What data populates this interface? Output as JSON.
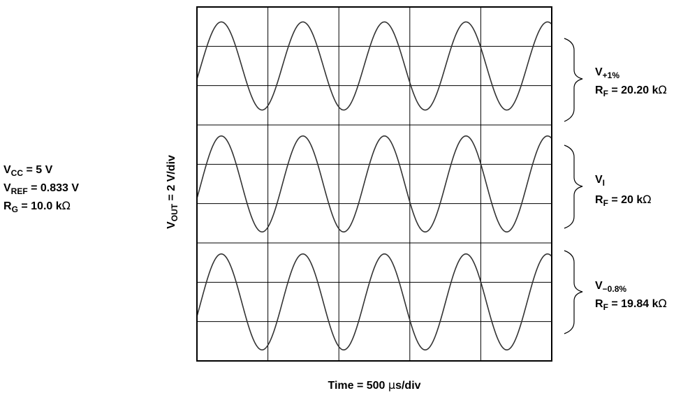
{
  "conditions": {
    "vcc": {
      "main": "V",
      "sub": "CC",
      "rest": " = 5 V"
    },
    "vref": {
      "main": "V",
      "sub": "REF",
      "rest": " = 0.833 V"
    },
    "rg": {
      "main": "R",
      "sub": "G",
      "rest": " = 10.0 k",
      "unit": "Ω"
    }
  },
  "axes": {
    "ylabel": {
      "main": "V",
      "sub": "OUT",
      "rest": " = 2 V/div"
    },
    "xlabel": {
      "pre": "Time = 500 ",
      "mu": "μ",
      "post": "s/div"
    }
  },
  "traces": [
    {
      "v_main": "V",
      "v_sub": "+1%",
      "r_main": "R",
      "r_sub": "F",
      "r_rest": " = 20.20 k",
      "r_unit": "Ω"
    },
    {
      "v_main": "V",
      "v_sub": "I",
      "r_main": "R",
      "r_sub": "F",
      "r_rest": " = 20 k",
      "r_unit": "Ω"
    },
    {
      "v_main": "V",
      "v_sub": "−0.8%",
      "r_main": "R",
      "r_sub": "F",
      "r_rest": " = 19.84 k",
      "r_unit": "Ω"
    }
  ],
  "chart_data": {
    "type": "line",
    "grid": true,
    "x_divisions": 5,
    "y_divisions": 9,
    "x_unit": "500 µs/div",
    "y_unit": "2 V/div",
    "series": [
      {
        "cycles": 4.35,
        "phase_start": 0.3,
        "amplitude_div": 1.12,
        "center_div": 1.5
      },
      {
        "cycles": 4.35,
        "phase_start": 0.3,
        "amplitude_div": 1.22,
        "center_div": 4.5
      },
      {
        "cycles": 4.35,
        "phase_start": 0.3,
        "amplitude_div": 1.22,
        "center_div": 7.5
      }
    ],
    "colors": {
      "trace": "#333333",
      "grid": "#000000"
    }
  }
}
